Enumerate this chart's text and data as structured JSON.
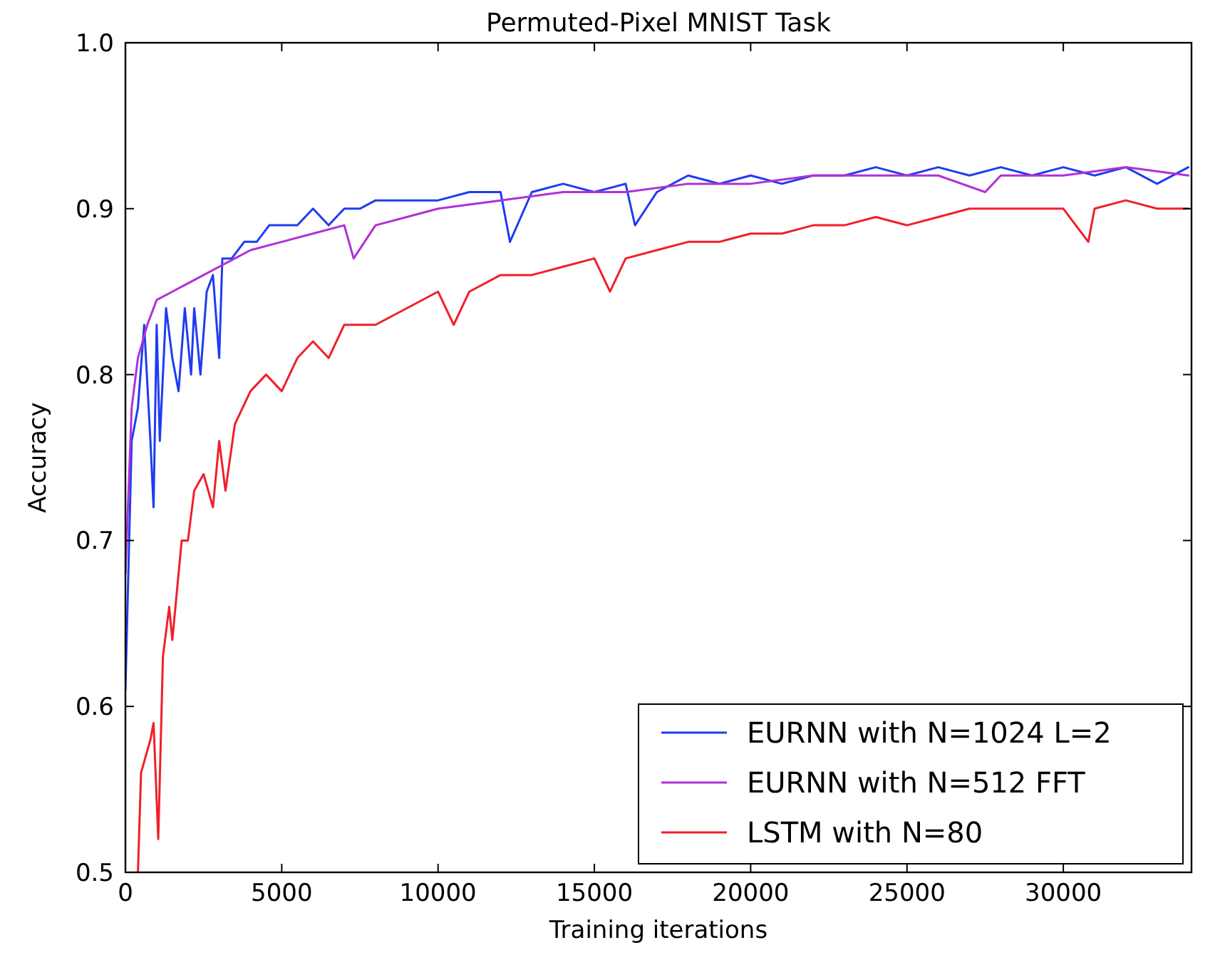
{
  "chart_data": {
    "type": "line",
    "title": "Permuted-Pixel MNIST Task",
    "xlabel": "Training iterations",
    "ylabel": "Accuracy",
    "xlim": [
      0,
      34100
    ],
    "ylim": [
      0.5,
      1.0
    ],
    "xticks": [
      0,
      5000,
      10000,
      15000,
      20000,
      25000,
      30000
    ],
    "yticks": [
      {
        "value": 0.5,
        "label": "0.5"
      },
      {
        "value": 0.6,
        "label": "0.6"
      },
      {
        "value": 0.7,
        "label": "0.7"
      },
      {
        "value": 0.8,
        "label": "0.8"
      },
      {
        "value": 0.9,
        "label": "0.9"
      },
      {
        "value": 1.0,
        "label": "1.0"
      }
    ],
    "grid": false,
    "legend": "bottom right",
    "line_style": "solid",
    "series": [
      {
        "name": "EURNN with N=1024 L=2",
        "color": "#1f3cf0",
        "x": [
          0,
          200,
          400,
          600,
          800,
          900,
          1000,
          1100,
          1300,
          1500,
          1700,
          1900,
          2100,
          2200,
          2400,
          2600,
          2800,
          3000,
          3100,
          3400,
          3800,
          4200,
          4600,
          5000,
          5500,
          6000,
          6500,
          7000,
          7500,
          8000,
          9000,
          10000,
          11000,
          12000,
          12300,
          13000,
          14000,
          15000,
          16000,
          16300,
          17000,
          18000,
          19000,
          20000,
          21000,
          22000,
          23000,
          24000,
          25000,
          26000,
          27000,
          28000,
          29000,
          30000,
          31000,
          32000,
          33000,
          34000
        ],
        "values": [
          0.61,
          0.76,
          0.78,
          0.83,
          0.76,
          0.72,
          0.83,
          0.76,
          0.84,
          0.81,
          0.79,
          0.84,
          0.8,
          0.84,
          0.8,
          0.85,
          0.86,
          0.81,
          0.87,
          0.87,
          0.88,
          0.88,
          0.89,
          0.89,
          0.89,
          0.9,
          0.89,
          0.9,
          0.9,
          0.905,
          0.905,
          0.905,
          0.91,
          0.91,
          0.88,
          0.91,
          0.915,
          0.91,
          0.915,
          0.89,
          0.91,
          0.92,
          0.915,
          0.92,
          0.915,
          0.92,
          0.92,
          0.925,
          0.92,
          0.925,
          0.92,
          0.925,
          0.92,
          0.925,
          0.92,
          0.925,
          0.915,
          0.925
        ]
      },
      {
        "name": "EURNN with N=512 FFT",
        "color": "#b030d8",
        "x": [
          0,
          200,
          400,
          700,
          1000,
          1500,
          2000,
          2500,
          3000,
          3500,
          4000,
          5000,
          6000,
          7000,
          7300,
          8000,
          9000,
          10000,
          12000,
          14000,
          16000,
          18000,
          20000,
          22000,
          24000,
          26000,
          27500,
          28000,
          30000,
          32000,
          34000
        ],
        "values": [
          0.68,
          0.78,
          0.81,
          0.83,
          0.845,
          0.85,
          0.855,
          0.86,
          0.865,
          0.87,
          0.875,
          0.88,
          0.885,
          0.89,
          0.87,
          0.89,
          0.895,
          0.9,
          0.905,
          0.91,
          0.91,
          0.915,
          0.915,
          0.92,
          0.92,
          0.92,
          0.91,
          0.92,
          0.92,
          0.925,
          0.92
        ]
      },
      {
        "name": "LSTM with N=80",
        "color": "#f0202a",
        "x": [
          400,
          500,
          800,
          900,
          1050,
          1200,
          1400,
          1500,
          1800,
          2000,
          2200,
          2500,
          2800,
          3000,
          3200,
          3500,
          4000,
          4500,
          5000,
          5500,
          6000,
          6500,
          7000,
          8000,
          9000,
          10000,
          10500,
          11000,
          12000,
          13000,
          14000,
          15000,
          15500,
          16000,
          17000,
          18000,
          19000,
          20000,
          21000,
          22000,
          23000,
          24000,
          25000,
          26000,
          27000,
          28000,
          29000,
          30000,
          30800,
          31000,
          32000,
          33000,
          34000
        ],
        "values": [
          0.5,
          0.56,
          0.58,
          0.59,
          0.52,
          0.63,
          0.66,
          0.64,
          0.7,
          0.7,
          0.73,
          0.74,
          0.72,
          0.76,
          0.73,
          0.77,
          0.79,
          0.8,
          0.79,
          0.81,
          0.82,
          0.81,
          0.83,
          0.83,
          0.84,
          0.85,
          0.83,
          0.85,
          0.86,
          0.86,
          0.865,
          0.87,
          0.85,
          0.87,
          0.875,
          0.88,
          0.88,
          0.885,
          0.885,
          0.89,
          0.89,
          0.895,
          0.89,
          0.895,
          0.9,
          0.9,
          0.9,
          0.9,
          0.88,
          0.9,
          0.905,
          0.9,
          0.9
        ]
      }
    ]
  }
}
